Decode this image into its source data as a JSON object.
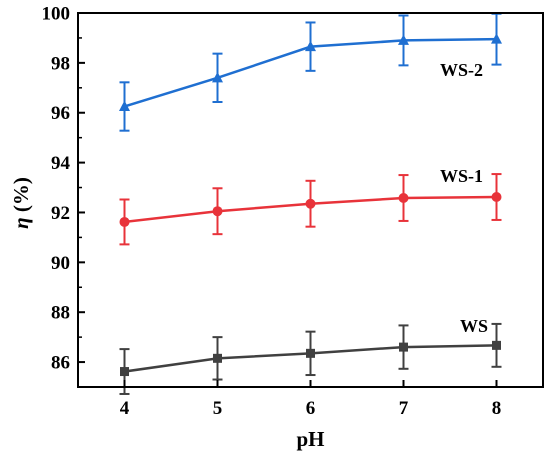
{
  "chart_data": {
    "type": "line",
    "title": "",
    "xlabel": "pH",
    "ylabel_main": "η",
    "ylabel_unit": " (%)",
    "x": [
      4,
      5,
      6,
      7,
      8
    ],
    "x_ticks": [
      "4",
      "5",
      "6",
      "7",
      "8"
    ],
    "xlim": [
      3.5,
      8.5
    ],
    "ylim": [
      85,
      100
    ],
    "y_ticks": [
      "86",
      "88",
      "90",
      "92",
      "94",
      "96",
      "98",
      "100"
    ],
    "grid": false,
    "series": [
      {
        "name": "WS",
        "color": "#404040",
        "marker": "square",
        "values": [
          85.62,
          86.15,
          86.35,
          86.6,
          86.67
        ],
        "error": [
          0.9,
          0.85,
          0.87,
          0.87,
          0.86
        ]
      },
      {
        "name": "WS-1",
        "color": "#e8333a",
        "marker": "circle",
        "values": [
          91.62,
          92.05,
          92.35,
          92.58,
          92.62
        ],
        "error": [
          0.9,
          0.92,
          0.92,
          0.92,
          0.92
        ]
      },
      {
        "name": "WS-2",
        "color": "#1f6fd1",
        "marker": "triangle",
        "values": [
          96.25,
          97.4,
          98.65,
          98.9,
          98.95
        ],
        "error": [
          0.97,
          0.97,
          0.97,
          1.0,
          1.02
        ]
      }
    ]
  }
}
